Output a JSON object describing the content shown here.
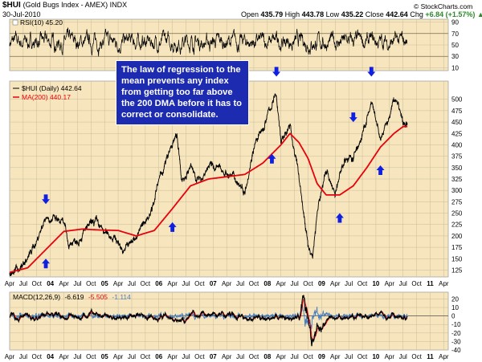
{
  "header": {
    "symbol": "$HUI",
    "name": "(Gold Bugs Index - AMEX) INDX",
    "date": "30-Jul-2010",
    "open_label": "Open",
    "open": "435.79",
    "high_label": "High",
    "high": "443.78",
    "low_label": "Low",
    "low": "435.22",
    "close_label": "Close",
    "close": "442.64",
    "chg_label": "Chg",
    "chg": "+6.84 (+1.57%)",
    "chg_arrow": "▲",
    "credit": "© StockCharts.com"
  },
  "callout": {
    "text": "The law of regression to the mean prevents any index from getting too far above the 200 DMA before it has to correct or consolidate."
  },
  "colors": {
    "panel_bg": "#f7e6bd",
    "grid": "#c9bc9c",
    "price": "#000000",
    "ma": "#e8000b",
    "arrow": "#1020e0",
    "macd_signal": "#e8000b",
    "macd_hist": "#4a7fbf",
    "callout_bg": "#1c2bb0"
  },
  "chart_data": [
    {
      "type": "line",
      "name": "rsi",
      "legend": "RSI(10) 45.20",
      "x_range": [
        "2003-04",
        "2010-07"
      ],
      "ylim": [
        5,
        95
      ],
      "yticks": [
        10,
        30,
        50,
        70,
        90
      ],
      "reference_lines": [
        30,
        70
      ],
      "grid": true
    },
    {
      "type": "line",
      "name": "price",
      "legend_price": "$HUI (Daily) 442.64",
      "legend_ma": "MA(200) 440.17",
      "x_range": [
        "2003-04",
        "2010-07"
      ],
      "ylim": [
        110,
        540
      ],
      "yticks": [
        125,
        150,
        175,
        200,
        225,
        250,
        275,
        300,
        325,
        350,
        375,
        400,
        425,
        450,
        475,
        500
      ],
      "grid": true,
      "price_anchors": [
        [
          "2003-04",
          118
        ],
        [
          "2003-06",
          128
        ],
        [
          "2003-08",
          150
        ],
        [
          "2003-10",
          190
        ],
        [
          "2003-12",
          245
        ],
        [
          "2004-02",
          235
        ],
        [
          "2004-04",
          225
        ],
        [
          "2004-05",
          180
        ],
        [
          "2004-07",
          195
        ],
        [
          "2004-09",
          215
        ],
        [
          "2004-11",
          230
        ],
        [
          "2005-01",
          205
        ],
        [
          "2005-03",
          200
        ],
        [
          "2005-05",
          170
        ],
        [
          "2005-07",
          185
        ],
        [
          "2005-09",
          215
        ],
        [
          "2005-11",
          250
        ],
        [
          "2006-01",
          320
        ],
        [
          "2006-04",
          400
        ],
        [
          "2006-05",
          420
        ],
        [
          "2006-06",
          320
        ],
        [
          "2006-08",
          350
        ],
        [
          "2006-10",
          320
        ],
        [
          "2006-12",
          355
        ],
        [
          "2007-03",
          345
        ],
        [
          "2007-06",
          325
        ],
        [
          "2007-08",
          300
        ],
        [
          "2007-10",
          400
        ],
        [
          "2007-12",
          430
        ],
        [
          "2008-01",
          465
        ],
        [
          "2008-03",
          510
        ],
        [
          "2008-04",
          410
        ],
        [
          "2008-06",
          440
        ],
        [
          "2008-08",
          330
        ],
        [
          "2008-10",
          175
        ],
        [
          "2008-11",
          155
        ],
        [
          "2008-12",
          250
        ],
        [
          "2009-02",
          350
        ],
        [
          "2009-04",
          290
        ],
        [
          "2009-06",
          370
        ],
        [
          "2009-08",
          370
        ],
        [
          "2009-10",
          420
        ],
        [
          "2009-12",
          490
        ],
        [
          "2010-02",
          410
        ],
        [
          "2010-04",
          460
        ],
        [
          "2010-05",
          500
        ],
        [
          "2010-06",
          490
        ],
        [
          "2010-07",
          443
        ]
      ],
      "ma200_anchors": [
        [
          "2003-04",
          120
        ],
        [
          "2003-08",
          130
        ],
        [
          "2003-12",
          170
        ],
        [
          "2004-04",
          210
        ],
        [
          "2004-08",
          215
        ],
        [
          "2004-12",
          213
        ],
        [
          "2005-04",
          212
        ],
        [
          "2005-08",
          200
        ],
        [
          "2005-12",
          212
        ],
        [
          "2006-04",
          260
        ],
        [
          "2006-08",
          310
        ],
        [
          "2006-12",
          325
        ],
        [
          "2007-04",
          330
        ],
        [
          "2007-08",
          335
        ],
        [
          "2007-12",
          360
        ],
        [
          "2008-04",
          400
        ],
        [
          "2008-06",
          425
        ],
        [
          "2008-08",
          405
        ],
        [
          "2008-10",
          370
        ],
        [
          "2008-12",
          315
        ],
        [
          "2009-02",
          290
        ],
        [
          "2009-05",
          290
        ],
        [
          "2009-08",
          310
        ],
        [
          "2009-11",
          350
        ],
        [
          "2010-02",
          395
        ],
        [
          "2010-05",
          425
        ],
        [
          "2010-07",
          440
        ]
      ],
      "down_arrows_at": [
        [
          "2003-12",
          270
        ],
        [
          "2006-04",
          448
        ],
        [
          "2008-03",
          550
        ],
        [
          "2009-08",
          450
        ],
        [
          "2009-12",
          550
        ]
      ],
      "up_arrows_at": [
        [
          "2003-12",
          150
        ],
        [
          "2006-04",
          230
        ],
        [
          "2008-02",
          380
        ],
        [
          "2009-05",
          250
        ],
        [
          "2010-02",
          355
        ]
      ]
    },
    {
      "type": "line",
      "name": "macd",
      "legend_label": "MACD(12,26,9)",
      "legend_macd": "-6.619",
      "legend_signal": "-5.505",
      "legend_hist": "-1.114",
      "x_range": [
        "2003-04",
        "2010-07"
      ],
      "ylim": [
        -40,
        28
      ],
      "yticks": [
        -40,
        -30,
        -20,
        -10,
        0,
        10,
        20
      ],
      "grid": true
    }
  ],
  "x_axis": {
    "labels": [
      {
        "t": "2003-04",
        "label": "Apr"
      },
      {
        "t": "2003-07",
        "label": "Jul"
      },
      {
        "t": "2003-10",
        "label": "Oct"
      },
      {
        "t": "2004-01",
        "label": "04",
        "year": true
      },
      {
        "t": "2004-04",
        "label": "Apr"
      },
      {
        "t": "2004-07",
        "label": "Jul"
      },
      {
        "t": "2004-10",
        "label": "Oct"
      },
      {
        "t": "2005-01",
        "label": "05",
        "year": true
      },
      {
        "t": "2005-04",
        "label": "Apr"
      },
      {
        "t": "2005-07",
        "label": "Jul"
      },
      {
        "t": "2005-10",
        "label": "Oct"
      },
      {
        "t": "2006-01",
        "label": "06",
        "year": true
      },
      {
        "t": "2006-04",
        "label": "Apr"
      },
      {
        "t": "2006-07",
        "label": "Jul"
      },
      {
        "t": "2006-10",
        "label": "Oct"
      },
      {
        "t": "2007-01",
        "label": "07",
        "year": true
      },
      {
        "t": "2007-04",
        "label": "Apr"
      },
      {
        "t": "2007-07",
        "label": "Jul"
      },
      {
        "t": "2007-10",
        "label": "Oct"
      },
      {
        "t": "2008-01",
        "label": "08",
        "year": true
      },
      {
        "t": "2008-04",
        "label": "Apr"
      },
      {
        "t": "2008-07",
        "label": "Jul"
      },
      {
        "t": "2008-10",
        "label": "Oct"
      },
      {
        "t": "2009-01",
        "label": "09",
        "year": true
      },
      {
        "t": "2009-04",
        "label": "Apr"
      },
      {
        "t": "2009-07",
        "label": "Jul"
      },
      {
        "t": "2009-10",
        "label": "Oct"
      },
      {
        "t": "2010-01",
        "label": "10",
        "year": true
      },
      {
        "t": "2010-04",
        "label": "Apr"
      },
      {
        "t": "2010-07",
        "label": "Jul"
      },
      {
        "t": "2010-10",
        "label": "Oct"
      },
      {
        "t": "2011-01",
        "label": "11",
        "year": true
      },
      {
        "t": "2011-04",
        "label": "Apr"
      }
    ]
  }
}
